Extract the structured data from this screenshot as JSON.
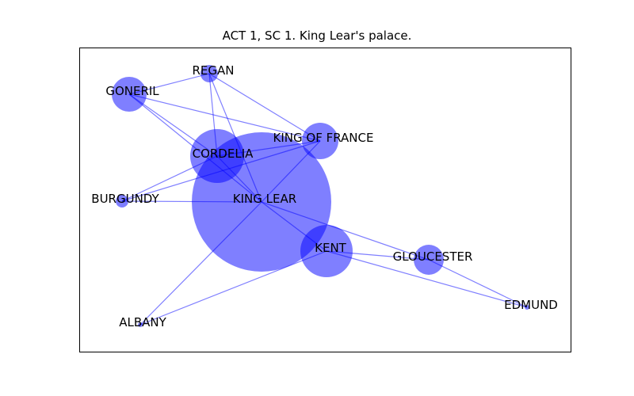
{
  "title": "ACT 1, SC 1. King Lear's palace.",
  "colors": {
    "node": "#0000ff",
    "edge": "#0000ff",
    "frame": "#000000",
    "label": "#000000"
  },
  "nodes": [
    {
      "id": "king-lear",
      "label": "KING LEAR"
    },
    {
      "id": "cordelia",
      "label": "CORDELIA"
    },
    {
      "id": "kent",
      "label": "KENT"
    },
    {
      "id": "king-of-france",
      "label": "KING OF FRANCE"
    },
    {
      "id": "goneril",
      "label": "GONERIL"
    },
    {
      "id": "gloucester",
      "label": "GLOUCESTER"
    },
    {
      "id": "regan",
      "label": "REGAN"
    },
    {
      "id": "burgundy",
      "label": "BURGUNDY"
    },
    {
      "id": "albany",
      "label": "ALBANY"
    },
    {
      "id": "edmund",
      "label": "EDMUND"
    }
  ],
  "edges": [
    [
      "king-lear",
      "cordelia"
    ],
    [
      "king-lear",
      "kent"
    ],
    [
      "king-lear",
      "king-of-france"
    ],
    [
      "king-lear",
      "goneril"
    ],
    [
      "king-lear",
      "regan"
    ],
    [
      "king-lear",
      "burgundy"
    ],
    [
      "king-lear",
      "albany"
    ],
    [
      "king-lear",
      "gloucester"
    ],
    [
      "cordelia",
      "regan"
    ],
    [
      "cordelia",
      "goneril"
    ],
    [
      "cordelia",
      "king-of-france"
    ],
    [
      "cordelia",
      "burgundy"
    ],
    [
      "goneril",
      "regan"
    ],
    [
      "goneril",
      "king-of-france"
    ],
    [
      "regan",
      "king-of-france"
    ],
    [
      "burgundy",
      "king-of-france"
    ],
    [
      "kent",
      "gloucester"
    ],
    [
      "kent",
      "edmund"
    ],
    [
      "kent",
      "albany"
    ],
    [
      "gloucester",
      "edmund"
    ]
  ]
}
